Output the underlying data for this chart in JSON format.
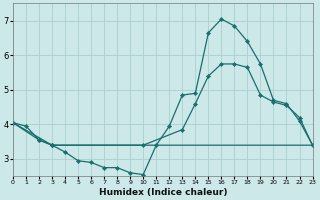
{
  "bg_color": "#cce8e8",
  "grid_color": "#aacfcf",
  "line_color": "#1a6e6e",
  "marker_color": "#1a6e6e",
  "xlabel": "Humidex (Indice chaleur)",
  "xlim": [
    0,
    23
  ],
  "ylim": [
    2.5,
    7.5
  ],
  "yticks": [
    3,
    4,
    5,
    6,
    7
  ],
  "xticks": [
    0,
    1,
    2,
    3,
    4,
    5,
    6,
    7,
    8,
    9,
    10,
    11,
    12,
    13,
    14,
    15,
    16,
    17,
    18,
    19,
    20,
    21,
    22,
    23
  ],
  "line1_x": [
    0,
    1,
    2,
    3,
    4,
    5,
    6,
    7,
    8,
    9,
    10,
    11,
    12,
    13,
    14,
    15,
    16,
    17,
    18,
    19,
    20,
    21,
    22,
    23
  ],
  "line1_y": [
    4.05,
    3.95,
    3.55,
    3.4,
    3.2,
    2.95,
    2.9,
    2.75,
    2.75,
    2.6,
    2.55,
    3.4,
    3.95,
    4.85,
    4.9,
    6.65,
    7.05,
    6.85,
    6.4,
    5.75,
    4.7,
    4.6,
    4.1,
    3.4
  ],
  "line2_x": [
    0,
    2,
    3,
    23
  ],
  "line2_y": [
    4.05,
    3.55,
    3.4,
    3.4
  ],
  "line3_x": [
    0,
    3,
    10,
    13,
    14,
    15,
    16,
    17,
    18,
    19,
    20,
    21,
    22,
    23
  ],
  "line3_y": [
    4.05,
    3.4,
    3.4,
    3.85,
    4.6,
    5.4,
    5.75,
    5.75,
    5.65,
    4.85,
    4.65,
    4.55,
    4.2,
    3.4
  ]
}
